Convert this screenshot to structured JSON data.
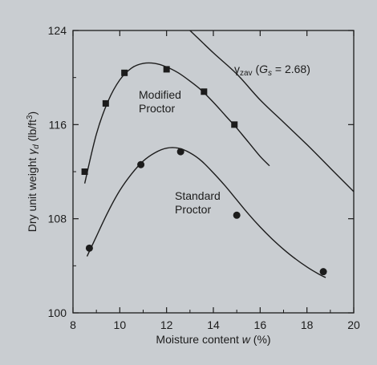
{
  "chart_data": {
    "type": "scatter",
    "xlabel_prefix": "Moisture content ",
    "xlabel_var": "w",
    "xlabel_suffix": " (%)",
    "ylabel_prefix": "Dry unit weight ",
    "ylabel_var": "γ",
    "ylabel_sub": "d",
    "ylabel_unit": " (lb/ft",
    "ylabel_unit_sup": "3",
    "ylabel_close": ")",
    "xlim": [
      8,
      20
    ],
    "ylim": [
      100,
      124
    ],
    "x_ticks": [
      "8",
      "10",
      "12",
      "14",
      "16",
      "18",
      "20"
    ],
    "y_ticks": [
      "100",
      "108",
      "116",
      "124"
    ],
    "grid": false,
    "series": [
      {
        "name": "Modified Proctor",
        "label_line1": "Modified",
        "label_line2": "Proctor",
        "marker": "square",
        "points": [
          {
            "x": 8.5,
            "y": 112.0
          },
          {
            "x": 9.4,
            "y": 117.8
          },
          {
            "x": 10.2,
            "y": 120.4
          },
          {
            "x": 12.0,
            "y": 120.7
          },
          {
            "x": 13.6,
            "y": 118.8
          },
          {
            "x": 14.9,
            "y": 116.0
          }
        ],
        "curve": [
          {
            "x": 8.5,
            "y": 111.0
          },
          {
            "x": 9.0,
            "y": 115.2
          },
          {
            "x": 9.5,
            "y": 118.0
          },
          {
            "x": 10.0,
            "y": 119.8
          },
          {
            "x": 10.5,
            "y": 120.8
          },
          {
            "x": 11.0,
            "y": 121.2
          },
          {
            "x": 11.5,
            "y": 121.2
          },
          {
            "x": 12.0,
            "y": 120.9
          },
          {
            "x": 12.5,
            "y": 120.4
          },
          {
            "x": 13.0,
            "y": 119.7
          },
          {
            "x": 13.5,
            "y": 118.9
          },
          {
            "x": 14.0,
            "y": 117.9
          },
          {
            "x": 14.5,
            "y": 116.8
          },
          {
            "x": 15.0,
            "y": 115.7
          },
          {
            "x": 15.5,
            "y": 114.5
          },
          {
            "x": 16.0,
            "y": 113.3
          },
          {
            "x": 16.4,
            "y": 112.5
          }
        ]
      },
      {
        "name": "Standard Proctor",
        "label_line1": "Standard",
        "label_line2": "Proctor",
        "marker": "circle",
        "points": [
          {
            "x": 8.7,
            "y": 105.5
          },
          {
            "x": 10.9,
            "y": 112.6
          },
          {
            "x": 12.6,
            "y": 113.7
          },
          {
            "x": 15.0,
            "y": 108.3
          },
          {
            "x": 18.7,
            "y": 103.5
          }
        ],
        "curve": [
          {
            "x": 8.6,
            "y": 104.8
          },
          {
            "x": 9.0,
            "y": 106.5
          },
          {
            "x": 9.5,
            "y": 108.6
          },
          {
            "x": 10.0,
            "y": 110.4
          },
          {
            "x": 10.5,
            "y": 111.8
          },
          {
            "x": 11.0,
            "y": 112.9
          },
          {
            "x": 11.5,
            "y": 113.6
          },
          {
            "x": 12.0,
            "y": 114.0
          },
          {
            "x": 12.5,
            "y": 114.0
          },
          {
            "x": 13.0,
            "y": 113.6
          },
          {
            "x": 13.5,
            "y": 112.9
          },
          {
            "x": 14.0,
            "y": 111.9
          },
          {
            "x": 14.5,
            "y": 110.8
          },
          {
            "x": 15.0,
            "y": 109.6
          },
          {
            "x": 15.5,
            "y": 108.4
          },
          {
            "x": 16.0,
            "y": 107.3
          },
          {
            "x": 16.5,
            "y": 106.3
          },
          {
            "x": 17.0,
            "y": 105.4
          },
          {
            "x": 17.5,
            "y": 104.6
          },
          {
            "x": 18.0,
            "y": 103.9
          },
          {
            "x": 18.5,
            "y": 103.3
          },
          {
            "x": 18.8,
            "y": 103.0
          }
        ]
      },
      {
        "name": "zav",
        "marker": "none",
        "curve": [
          {
            "x": 13.0,
            "y": 124.0
          },
          {
            "x": 14.0,
            "y": 122.1
          },
          {
            "x": 15.0,
            "y": 120.3
          },
          {
            "x": 16.0,
            "y": 118.1
          },
          {
            "x": 17.0,
            "y": 116.2
          },
          {
            "x": 18.0,
            "y": 114.3
          },
          {
            "x": 19.0,
            "y": 112.3
          },
          {
            "x": 20.0,
            "y": 110.3
          }
        ]
      }
    ],
    "annotation": {
      "gamma": "γ",
      "sub": "zav",
      "open": " (",
      "g": "G",
      "g_sub": "s",
      "eq": " = 2.68)"
    }
  }
}
